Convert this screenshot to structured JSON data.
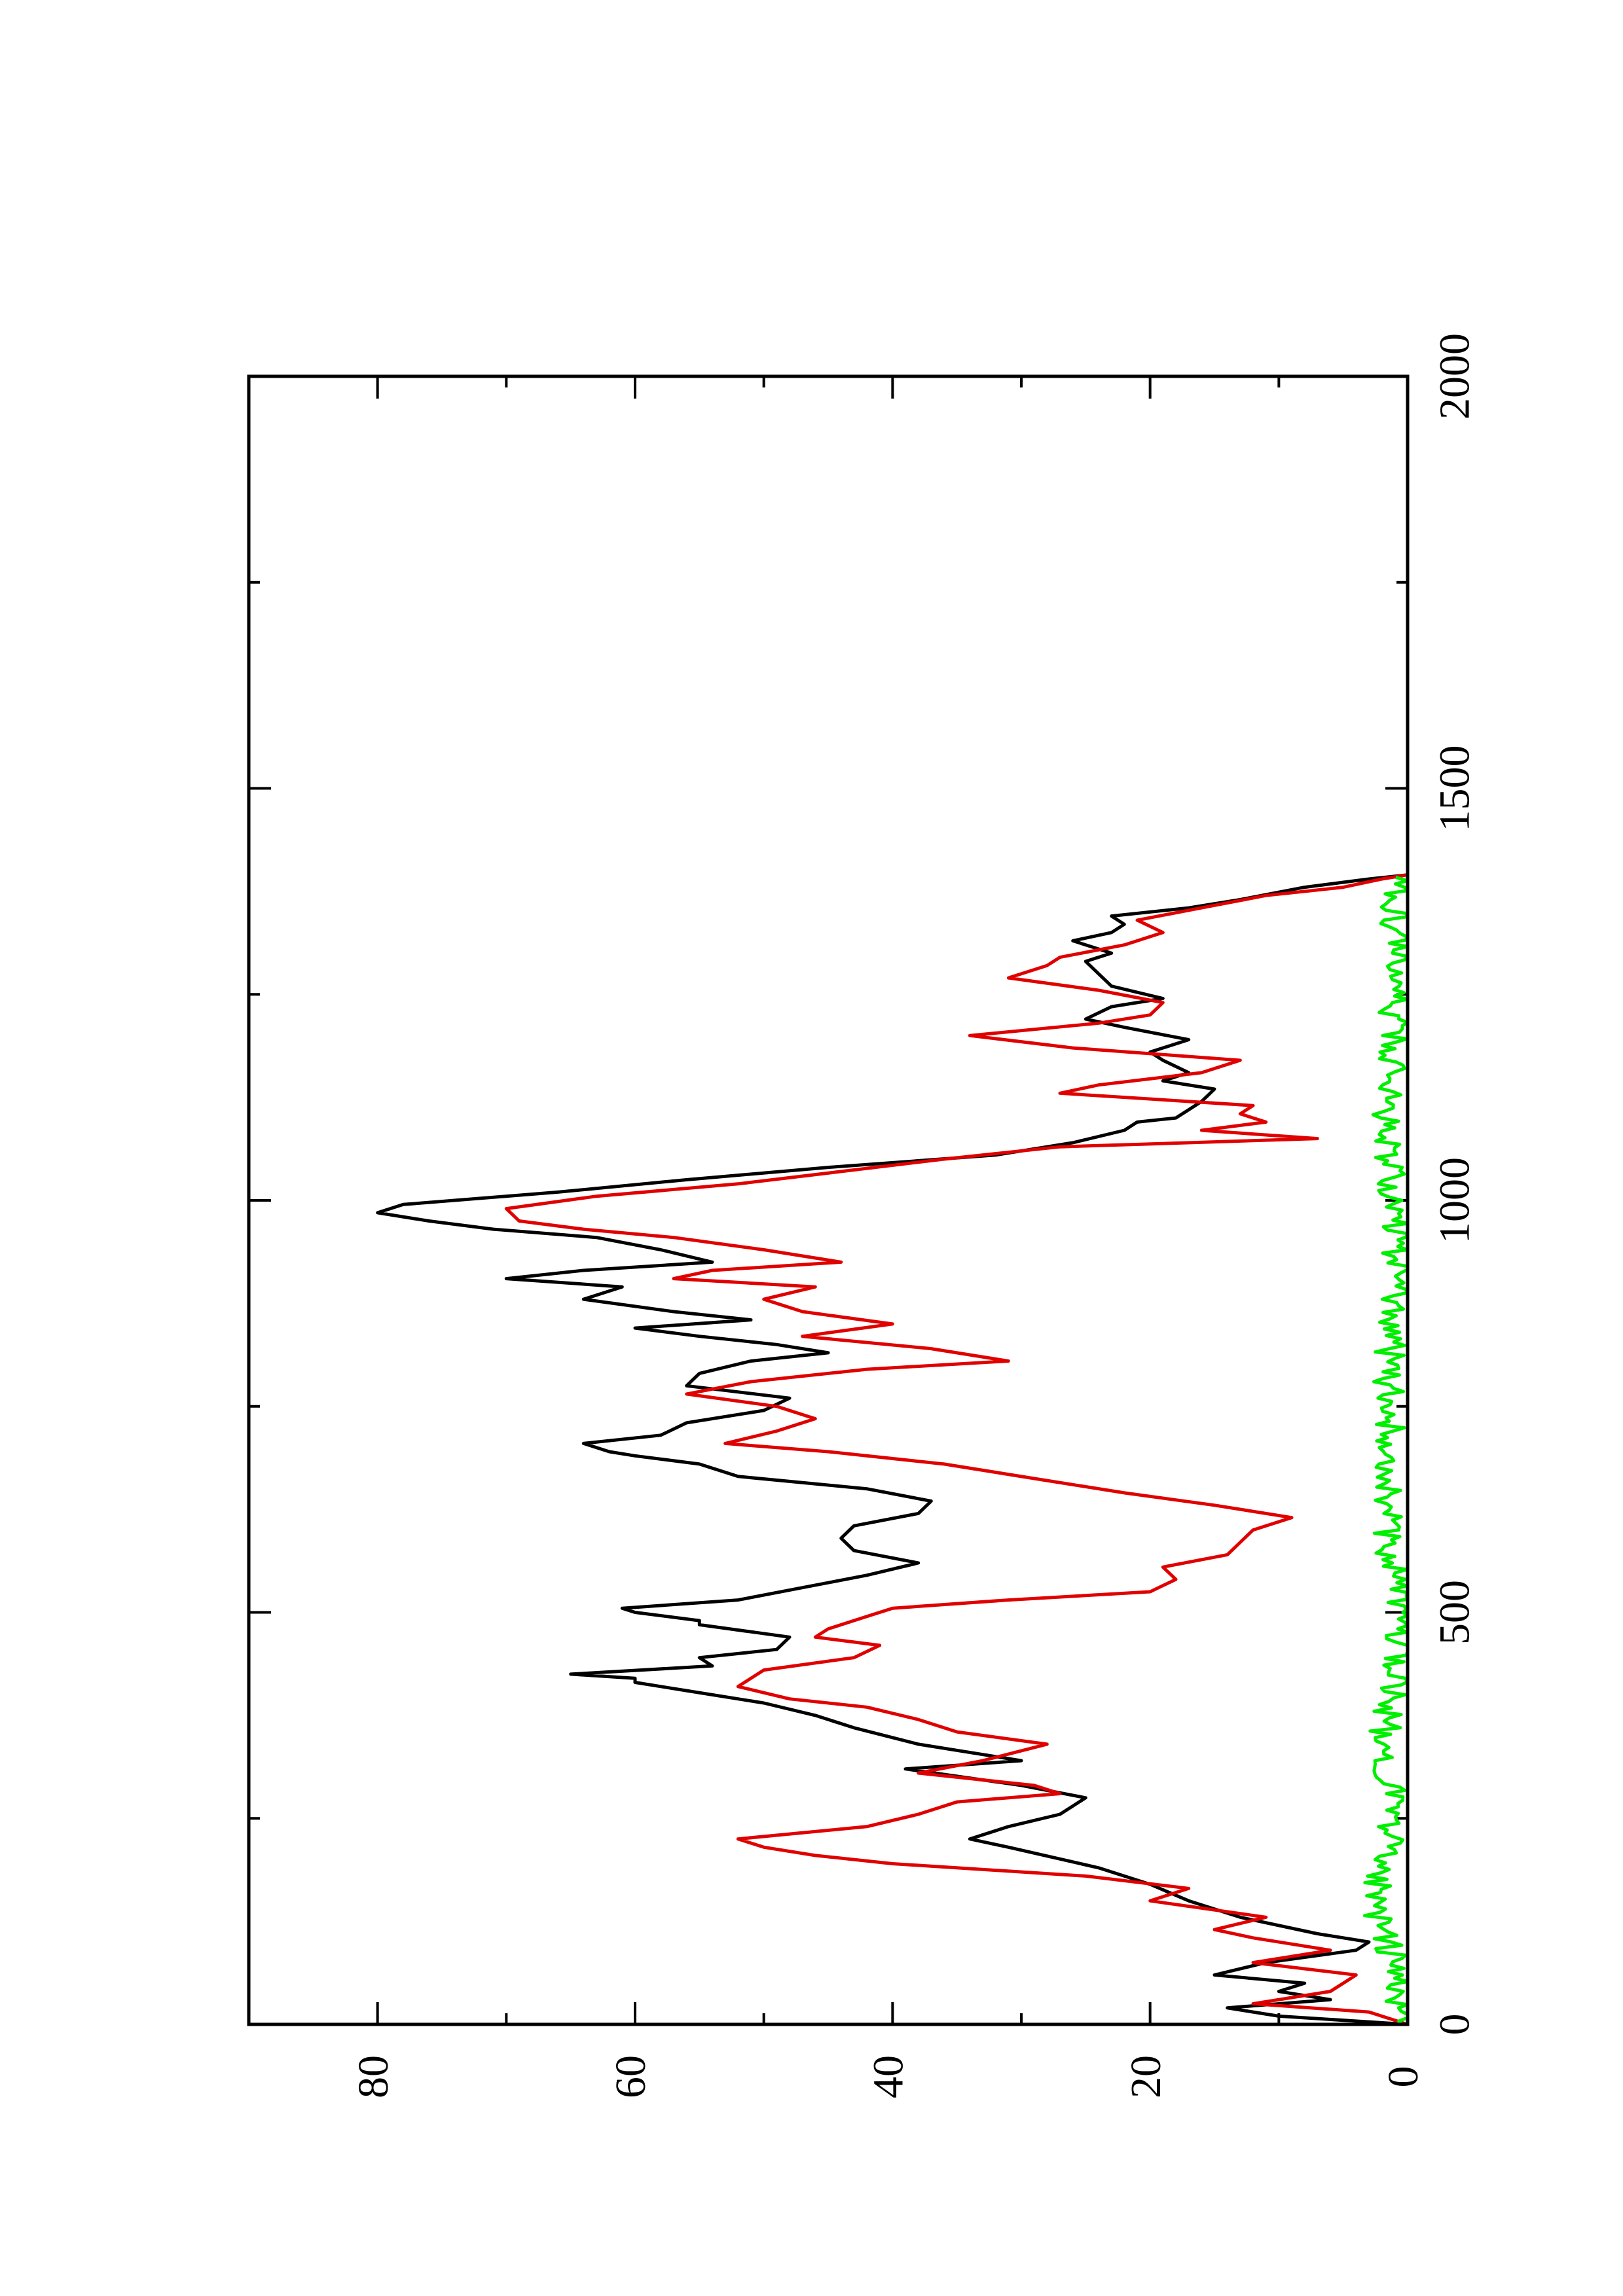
{
  "chart_data": {
    "type": "line",
    "orientation": "rotated-90-ccw",
    "title": "",
    "xlabel": "",
    "ylabel": "",
    "grid": false,
    "legend": "none",
    "xlim": [
      0,
      2000
    ],
    "ylim": [
      0,
      90
    ],
    "x_major_ticks": [
      0,
      500,
      1000,
      1500,
      2000
    ],
    "x_minor_ticks": [
      250,
      750,
      1250,
      1750
    ],
    "y_major_ticks": [
      0,
      20,
      40,
      60,
      80
    ],
    "y_minor_ticks": [
      10,
      30,
      50,
      70
    ],
    "x_tick_labels": [
      "0",
      "500",
      "1000",
      "1500",
      "2000"
    ],
    "y_tick_labels": [
      "0",
      "20",
      "40",
      "60",
      "80"
    ],
    "series": [
      {
        "color": "#000000",
        "points": [
          [
            0,
            0
          ],
          [
            10,
            10
          ],
          [
            20,
            14
          ],
          [
            30,
            6
          ],
          [
            40,
            10
          ],
          [
            50,
            8
          ],
          [
            60,
            15
          ],
          [
            75,
            11
          ],
          [
            90,
            4
          ],
          [
            100,
            3
          ],
          [
            110,
            7
          ],
          [
            130,
            13
          ],
          [
            150,
            17
          ],
          [
            170,
            20
          ],
          [
            190,
            24
          ],
          [
            215,
            31
          ],
          [
            225,
            34
          ],
          [
            240,
            31
          ],
          [
            255,
            27
          ],
          [
            275,
            25
          ],
          [
            290,
            30
          ],
          [
            310,
            39
          ],
          [
            320,
            30
          ],
          [
            340,
            38
          ],
          [
            360,
            43
          ],
          [
            375,
            46
          ],
          [
            390,
            50
          ],
          [
            405,
            56
          ],
          [
            415,
            60
          ],
          [
            420,
            60
          ],
          [
            425,
            65
          ],
          [
            435,
            54
          ],
          [
            445,
            55
          ],
          [
            455,
            49
          ],
          [
            470,
            48
          ],
          [
            485,
            55
          ],
          [
            490,
            55
          ],
          [
            500,
            60
          ],
          [
            505,
            61
          ],
          [
            515,
            52
          ],
          [
            530,
            47
          ],
          [
            545,
            42
          ],
          [
            560,
            38
          ],
          [
            575,
            43
          ],
          [
            590,
            44
          ],
          [
            605,
            43
          ],
          [
            620,
            38
          ],
          [
            635,
            37
          ],
          [
            650,
            42
          ],
          [
            665,
            52
          ],
          [
            680,
            55
          ],
          [
            690,
            60
          ],
          [
            695,
            62
          ],
          [
            705,
            64
          ],
          [
            715,
            58
          ],
          [
            730,
            56
          ],
          [
            745,
            50
          ],
          [
            760,
            48
          ],
          [
            775,
            56
          ],
          [
            790,
            55
          ],
          [
            805,
            51
          ],
          [
            815,
            45
          ],
          [
            825,
            49
          ],
          [
            835,
            55
          ],
          [
            845,
            60
          ],
          [
            855,
            51
          ],
          [
            865,
            57
          ],
          [
            880,
            64
          ],
          [
            895,
            61
          ],
          [
            905,
            70
          ],
          [
            915,
            64
          ],
          [
            925,
            54
          ],
          [
            940,
            58
          ],
          [
            955,
            63
          ],
          [
            965,
            71
          ],
          [
            975,
            76
          ],
          [
            985,
            80
          ],
          [
            995,
            78
          ],
          [
            1010,
            66
          ],
          [
            1025,
            56
          ],
          [
            1040,
            45
          ],
          [
            1055,
            32
          ],
          [
            1070,
            26
          ],
          [
            1085,
            22
          ],
          [
            1095,
            21
          ],
          [
            1100,
            18
          ],
          [
            1110,
            17
          ],
          [
            1120,
            16
          ],
          [
            1135,
            15
          ],
          [
            1145,
            19
          ],
          [
            1155,
            17
          ],
          [
            1170,
            19
          ],
          [
            1180,
            20
          ],
          [
            1195,
            17
          ],
          [
            1210,
            22
          ],
          [
            1220,
            25
          ],
          [
            1235,
            23
          ],
          [
            1245,
            19
          ],
          [
            1260,
            23
          ],
          [
            1275,
            24
          ],
          [
            1290,
            25
          ],
          [
            1300,
            23
          ],
          [
            1315,
            26
          ],
          [
            1325,
            23
          ],
          [
            1335,
            22
          ],
          [
            1345,
            23
          ],
          [
            1355,
            17
          ],
          [
            1365,
            13
          ],
          [
            1380,
            8
          ],
          [
            1390,
            3
          ],
          [
            1395,
            0
          ]
        ]
      },
      {
        "color": "#e00000",
        "points": [
          [
            0,
            0
          ],
          [
            15,
            3
          ],
          [
            25,
            12
          ],
          [
            40,
            6
          ],
          [
            50,
            5
          ],
          [
            60,
            4
          ],
          [
            75,
            12
          ],
          [
            90,
            6
          ],
          [
            105,
            12
          ],
          [
            115,
            15
          ],
          [
            130,
            11
          ],
          [
            150,
            20
          ],
          [
            165,
            17
          ],
          [
            180,
            25
          ],
          [
            195,
            40
          ],
          [
            205,
            46
          ],
          [
            215,
            50
          ],
          [
            225,
            52
          ],
          [
            240,
            42
          ],
          [
            255,
            38
          ],
          [
            270,
            35
          ],
          [
            280,
            27
          ],
          [
            290,
            29
          ],
          [
            305,
            38
          ],
          [
            320,
            33
          ],
          [
            340,
            28
          ],
          [
            355,
            35
          ],
          [
            370,
            38
          ],
          [
            385,
            42
          ],
          [
            395,
            48
          ],
          [
            410,
            52
          ],
          [
            420,
            51
          ],
          [
            430,
            50
          ],
          [
            445,
            43
          ],
          [
            460,
            41
          ],
          [
            470,
            46
          ],
          [
            480,
            45
          ],
          [
            495,
            42
          ],
          [
            505,
            40
          ],
          [
            515,
            31
          ],
          [
            525,
            20
          ],
          [
            540,
            18
          ],
          [
            555,
            19
          ],
          [
            570,
            14
          ],
          [
            585,
            13
          ],
          [
            600,
            12
          ],
          [
            615,
            9
          ],
          [
            630,
            15
          ],
          [
            645,
            22
          ],
          [
            660,
            28
          ],
          [
            680,
            36
          ],
          [
            695,
            45
          ],
          [
            705,
            53
          ],
          [
            720,
            49
          ],
          [
            735,
            46
          ],
          [
            750,
            49
          ],
          [
            765,
            56
          ],
          [
            780,
            51
          ],
          [
            795,
            42
          ],
          [
            805,
            31
          ],
          [
            820,
            37
          ],
          [
            835,
            47
          ],
          [
            850,
            40
          ],
          [
            865,
            47
          ],
          [
            880,
            50
          ],
          [
            895,
            46
          ],
          [
            905,
            57
          ],
          [
            915,
            54
          ],
          [
            925,
            44
          ],
          [
            940,
            50
          ],
          [
            955,
            57
          ],
          [
            965,
            64
          ],
          [
            975,
            69
          ],
          [
            990,
            70
          ],
          [
            1005,
            63
          ],
          [
            1020,
            52
          ],
          [
            1035,
            44
          ],
          [
            1050,
            36
          ],
          [
            1065,
            27
          ],
          [
            1075,
            7
          ],
          [
            1085,
            16
          ],
          [
            1095,
            11
          ],
          [
            1105,
            13
          ],
          [
            1115,
            12
          ],
          [
            1130,
            27
          ],
          [
            1140,
            24
          ],
          [
            1155,
            16
          ],
          [
            1170,
            13
          ],
          [
            1185,
            26
          ],
          [
            1200,
            34
          ],
          [
            1215,
            24
          ],
          [
            1225,
            20
          ],
          [
            1240,
            19
          ],
          [
            1255,
            24
          ],
          [
            1270,
            31
          ],
          [
            1285,
            28
          ],
          [
            1295,
            27
          ],
          [
            1310,
            22
          ],
          [
            1325,
            19
          ],
          [
            1340,
            21
          ],
          [
            1355,
            16
          ],
          [
            1370,
            11
          ],
          [
            1380,
            5
          ],
          [
            1390,
            2
          ],
          [
            1395,
            0
          ]
        ]
      },
      {
        "color": "#00ee00",
        "baseline": 1.0,
        "amplitude": 1.2,
        "points": [
          [
            0,
            0.5
          ],
          [
            100,
            1.4
          ],
          [
            150,
            2.6
          ],
          [
            200,
            1.9
          ],
          [
            260,
            0.8
          ],
          [
            300,
            1.3
          ],
          [
            320,
            2.4
          ],
          [
            400,
            1.1
          ],
          [
            500,
            0.7
          ],
          [
            600,
            1.7
          ],
          [
            700,
            1.2
          ],
          [
            800,
            1.5
          ],
          [
            900,
            0.9
          ],
          [
            1000,
            1.1
          ],
          [
            1100,
            1.6
          ],
          [
            1200,
            1.0
          ],
          [
            1300,
            1.2
          ],
          [
            1395,
            0.6
          ]
        ]
      }
    ]
  }
}
